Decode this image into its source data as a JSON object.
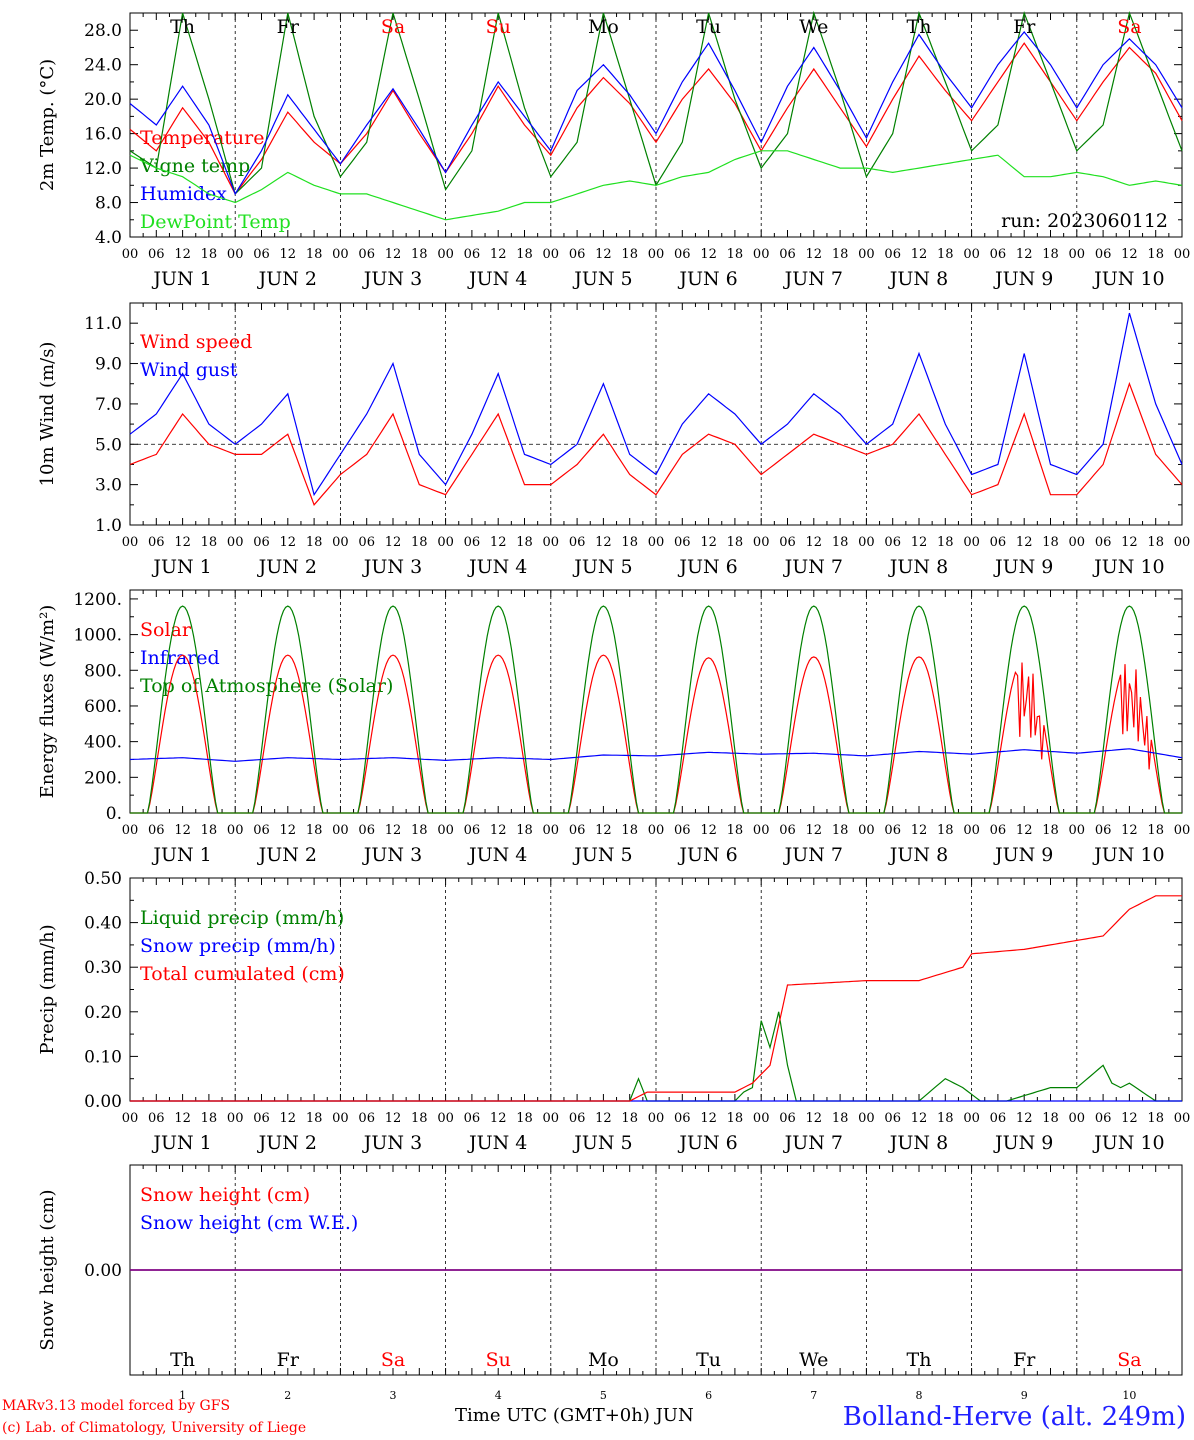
{
  "meteogram": {
    "run_label": "run: 2023060112",
    "hour_ticks": [
      "00",
      "06",
      "12",
      "18"
    ],
    "final_tick": "00",
    "day_labels": [
      "JUN 1",
      "JUN 2",
      "JUN 3",
      "JUN 4",
      "JUN 5",
      "JUN 6",
      "JUN 7",
      "JUN 8",
      "JUN 9",
      "JUN 10"
    ],
    "weekdays": [
      "Th",
      "Fr",
      "Sa",
      "Su",
      "Mo",
      "Tu",
      "We",
      "Th",
      "Fr",
      "Sa"
    ],
    "weekday_colors": [
      "#000000",
      "#000000",
      "#ff0000",
      "#ff0000",
      "#000000",
      "#000000",
      "#000000",
      "#000000",
      "#000000",
      "#ff0000"
    ],
    "day_numbers": [
      "1",
      "2",
      "3",
      "4",
      "5",
      "6",
      "7",
      "8",
      "9",
      "10"
    ],
    "footer": {
      "model": "MARv3.13 model forced by GFS",
      "lab": "(c) Lab. of Climatology, University of Liege",
      "xlabel": "Time UTC (GMT+0h) JUN",
      "station": "Bolland-Herve (alt. 249m)"
    },
    "colors": {
      "red": "#ff0000",
      "green": "#008000",
      "blue": "#0000ff",
      "lightgreen": "#20e020",
      "purple": "#800080"
    }
  },
  "chart_data": [
    {
      "type": "line",
      "ylabel": "2m Temp. (°C)",
      "ylim": [
        4,
        30
      ],
      "yticks": [
        "4.0",
        "8.0",
        "12.0",
        "16.0",
        "20.0",
        "24.0",
        "28.0"
      ],
      "x_unit": "hours since JUN 1 00 UTC",
      "x": [
        0,
        6,
        12,
        18,
        24,
        30,
        36,
        42,
        48,
        54,
        60,
        66,
        72,
        78,
        84,
        90,
        96,
        102,
        108,
        114,
        120,
        126,
        132,
        138,
        144,
        150,
        156,
        162,
        168,
        174,
        180,
        186,
        192,
        198,
        204,
        210,
        216,
        222,
        228,
        234,
        240
      ],
      "series": [
        {
          "name": "Temperature",
          "color": "#ff0000",
          "values": [
            16.5,
            14,
            19,
            15,
            9,
            13,
            18.5,
            15,
            12.5,
            16,
            21,
            16,
            11.5,
            16,
            21.5,
            17,
            13.5,
            19,
            22.5,
            19.5,
            15,
            20,
            23.5,
            19.5,
            14,
            19,
            23.5,
            19,
            14.5,
            20,
            25,
            21,
            17.5,
            22,
            26.5,
            22,
            17.5,
            22,
            26,
            23,
            17.5
          ]
        },
        {
          "name": "Vigne temp",
          "color": "#008000",
          "values": [
            14,
            12,
            30,
            20,
            9,
            12,
            30,
            18,
            11,
            15,
            30,
            20,
            9.5,
            14,
            30,
            19,
            11,
            15,
            30,
            20,
            10,
            15,
            30,
            20,
            12,
            16,
            30,
            21,
            11,
            16,
            30,
            22,
            14,
            17,
            30,
            22,
            14,
            17,
            30,
            22,
            14
          ]
        },
        {
          "name": "Humidex",
          "color": "#0000ff",
          "values": [
            19.5,
            17,
            21.5,
            17,
            9,
            14,
            20.5,
            16.5,
            12.5,
            17,
            21.2,
            16.5,
            11.5,
            17,
            22,
            18,
            14,
            21,
            24,
            20.5,
            16,
            22,
            26.5,
            21,
            15,
            21.5,
            26,
            21,
            15.5,
            22,
            27.5,
            23,
            19,
            24,
            27.8,
            24,
            19,
            24,
            27,
            24,
            19
          ]
        },
        {
          "name": "DewPoint Temp",
          "color": "#20e020",
          "values": [
            13.5,
            12,
            11,
            9,
            8,
            9.5,
            11.5,
            10,
            9,
            9,
            8,
            7,
            6,
            6.5,
            7,
            8,
            8,
            9,
            10,
            10.5,
            10,
            11,
            11.5,
            13,
            14,
            14,
            13,
            12,
            12,
            11.5,
            12,
            12.5,
            13,
            13.5,
            11,
            11,
            11.5,
            11,
            10,
            10.5,
            10
          ]
        }
      ]
    },
    {
      "type": "line",
      "ylabel": "10m Wind (m/s)",
      "ylim": [
        1,
        12
      ],
      "yticks": [
        "1.0",
        "3.0",
        "5.0",
        "7.0",
        "9.0",
        "11.0"
      ],
      "reference_line": 5,
      "x": [
        0,
        6,
        12,
        18,
        24,
        30,
        36,
        42,
        48,
        54,
        60,
        66,
        72,
        78,
        84,
        90,
        96,
        102,
        108,
        114,
        120,
        126,
        132,
        138,
        144,
        150,
        156,
        162,
        168,
        174,
        180,
        186,
        192,
        198,
        204,
        210,
        216,
        222,
        228,
        234,
        240
      ],
      "series": [
        {
          "name": "Wind speed",
          "color": "#ff0000",
          "values": [
            4,
            4.5,
            6.5,
            5,
            4.5,
            4.5,
            5.5,
            2,
            3.5,
            4.5,
            6.5,
            3,
            2.5,
            4.5,
            6.5,
            3,
            3,
            4,
            5.5,
            3.5,
            2.5,
            4.5,
            5.5,
            5,
            3.5,
            4.5,
            5.5,
            5,
            4.5,
            5,
            6.5,
            4.5,
            2.5,
            3,
            6.5,
            2.5,
            2.5,
            4,
            8,
            4.5,
            3
          ]
        },
        {
          "name": "Wind gust",
          "color": "#0000ff",
          "values": [
            5.5,
            6.5,
            8.5,
            6,
            5,
            6,
            7.5,
            2.5,
            4.5,
            6.5,
            9,
            4.5,
            3,
            5.5,
            8.5,
            4.5,
            4,
            5,
            8,
            4.5,
            3.5,
            6,
            7.5,
            6.5,
            5,
            6,
            7.5,
            6.5,
            5,
            6,
            9.5,
            6,
            3.5,
            4,
            9.5,
            4,
            3.5,
            5,
            11.5,
            7,
            4
          ]
        }
      ]
    },
    {
      "type": "line",
      "ylabel": "Energy fluxes (W/m²)",
      "ylim": [
        0,
        1250
      ],
      "yticks": [
        "0.",
        "200.",
        "400.",
        "600.",
        "800.",
        "1000.",
        "1200."
      ],
      "x_unit": "hours since JUN 1 00 UTC",
      "daily_peak_hour": 12,
      "series": [
        {
          "name": "Solar",
          "color": "#ff0000",
          "daily_peaks": [
            885,
            885,
            885,
            885,
            885,
            870,
            875,
            875,
            870,
            855
          ]
        },
        {
          "name": "Infrared",
          "color": "#0000ff",
          "x": [
            0,
            12,
            24,
            36,
            48,
            60,
            72,
            84,
            96,
            108,
            120,
            132,
            144,
            156,
            168,
            180,
            192,
            204,
            216,
            228,
            240
          ],
          "values": [
            300,
            310,
            290,
            310,
            300,
            310,
            295,
            310,
            300,
            325,
            320,
            340,
            330,
            335,
            320,
            345,
            330,
            355,
            335,
            360,
            310
          ]
        },
        {
          "name": "Top of Atmosphere (Solar)",
          "color": "#008000",
          "daily_peaks": [
            1160,
            1160,
            1160,
            1160,
            1160,
            1160,
            1160,
            1160,
            1160,
            1160
          ]
        }
      ]
    },
    {
      "type": "line",
      "ylabel": "Precip (mm/h)",
      "ylim": [
        0,
        0.5
      ],
      "yticks": [
        "0.00",
        "0.10",
        "0.20",
        "0.30",
        "0.40",
        "0.50"
      ],
      "series": [
        {
          "name": "Liquid precip (mm/h)",
          "color": "#008000",
          "x": [
            0,
            114,
            116,
            118,
            120,
            138,
            140,
            142,
            144,
            146,
            148,
            150,
            152,
            180,
            186,
            190,
            194,
            200,
            210,
            216,
            222,
            224,
            226,
            228,
            234,
            240
          ],
          "values": [
            0,
            0,
            0.05,
            0,
            0,
            0,
            0.02,
            0.03,
            0.18,
            0.12,
            0.2,
            0.08,
            0,
            0,
            0.05,
            0.03,
            0,
            0,
            0.03,
            0.03,
            0.08,
            0.04,
            0.03,
            0.04,
            0,
            0
          ]
        },
        {
          "name": "Snow precip (mm/h)",
          "color": "#0000ff",
          "x": [
            0,
            240
          ],
          "values": [
            0,
            0
          ]
        },
        {
          "name": "Total cumulated (cm)",
          "color": "#ff0000",
          "x": [
            0,
            114,
            118,
            138,
            142,
            146,
            150,
            168,
            180,
            190,
            192,
            204,
            210,
            216,
            222,
            228,
            234,
            240
          ],
          "values": [
            0,
            0,
            0.02,
            0.02,
            0.04,
            0.08,
            0.26,
            0.27,
            0.27,
            0.3,
            0.33,
            0.34,
            0.35,
            0.36,
            0.37,
            0.43,
            0.46,
            0.46
          ]
        }
      ]
    },
    {
      "type": "line",
      "ylabel": "Snow height (cm)",
      "ylim": [
        -1,
        1
      ],
      "yticks": [
        "0.00"
      ],
      "series": [
        {
          "name": "Snow height (cm)",
          "color": "#ff0000",
          "x": [
            0,
            240
          ],
          "values": [
            0,
            0
          ]
        },
        {
          "name": "Snow height (cm W.E.)",
          "color": "#0000ff",
          "x": [
            0,
            240
          ],
          "values": [
            0,
            0
          ]
        }
      ]
    }
  ]
}
